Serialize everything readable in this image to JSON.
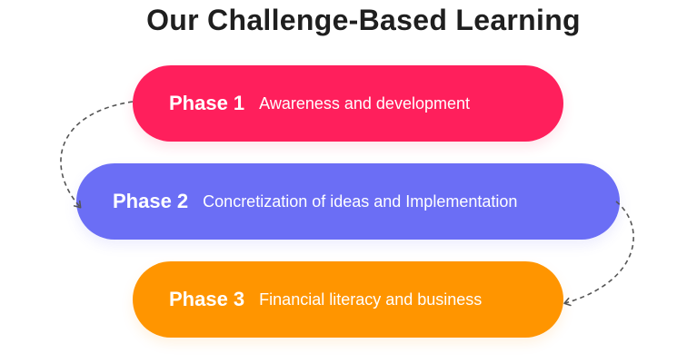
{
  "title": "Our Challenge-Based Learning",
  "phases": [
    {
      "label": "Phase 1",
      "description": "Awareness and development",
      "color": "#ff1f5c"
    },
    {
      "label": "Phase 2",
      "description": "Concretization of ideas and Implementation",
      "color": "#6b6ef5"
    },
    {
      "label": "Phase 3",
      "description": "Financial literacy and business",
      "color": "#ff9500"
    }
  ],
  "connector_color": "#555555"
}
